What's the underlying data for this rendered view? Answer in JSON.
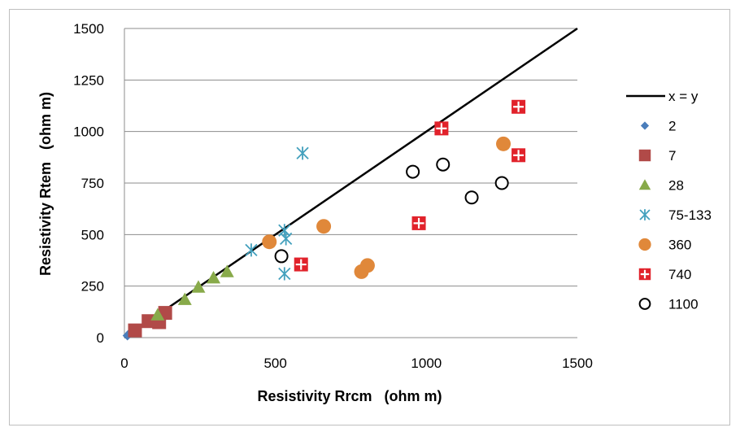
{
  "chart_data": {
    "type": "scatter",
    "title": "",
    "xlabel": "Resistivity Rrcm   (ohm m)",
    "ylabel": "Resistivity Rtem   (ohm m)",
    "xlim": [
      0,
      1500
    ],
    "ylim": [
      0,
      1500
    ],
    "xticks": [
      0,
      500,
      1000,
      1500
    ],
    "yticks": [
      0,
      250,
      500,
      750,
      1000,
      1250,
      1500
    ],
    "grid": "horizontal",
    "legend_position": "right",
    "reference_line": {
      "name": "x = y",
      "x": [
        0,
        1500
      ],
      "y": [
        0,
        1500
      ],
      "color": "#000000"
    },
    "series": [
      {
        "name": "2",
        "marker": "diamond",
        "color": "#4a7ebb",
        "x": [
          10,
          20
        ],
        "y": [
          10,
          25
        ]
      },
      {
        "name": "7",
        "marker": "square",
        "color": "#b14a48",
        "x": [
          35,
          80,
          115,
          135
        ],
        "y": [
          35,
          80,
          75,
          120
        ]
      },
      {
        "name": "28",
        "marker": "triangle",
        "color": "#88aa4a",
        "x": [
          110,
          200,
          245,
          295,
          340
        ],
        "y": [
          110,
          185,
          245,
          290,
          320
        ]
      },
      {
        "name": "75-133",
        "marker": "asterisk",
        "color": "#43a0bd",
        "x": [
          420,
          530,
          535,
          530,
          590
        ],
        "y": [
          425,
          520,
          480,
          310,
          895
        ]
      },
      {
        "name": "360",
        "marker": "circle-filled",
        "color": "#e0883a",
        "x": [
          480,
          660,
          785,
          805,
          1255
        ],
        "y": [
          465,
          540,
          320,
          350,
          940
        ]
      },
      {
        "name": "740",
        "marker": "plus-square",
        "color": "#e1222b",
        "x": [
          585,
          975,
          1050,
          1305,
          1305
        ],
        "y": [
          355,
          555,
          1015,
          885,
          1120
        ]
      },
      {
        "name": "1100",
        "marker": "circle-open",
        "color": "#000000",
        "x": [
          520,
          955,
          1055,
          1150,
          1250
        ],
        "y": [
          395,
          805,
          840,
          680,
          750
        ]
      }
    ]
  }
}
